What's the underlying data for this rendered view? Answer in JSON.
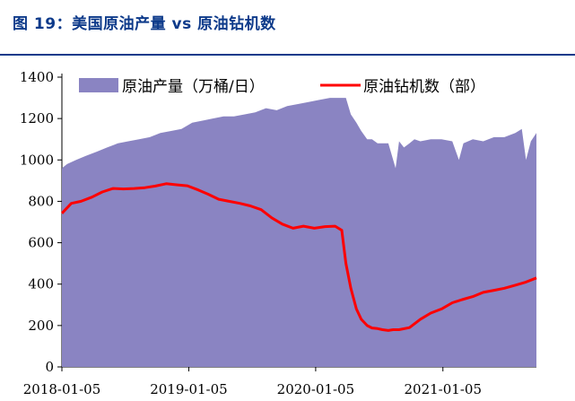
{
  "figure_title": "图 19：美国原油产量 vs 原油钻机数",
  "colors": {
    "title": "#0d3a8a",
    "area": "#8a84c2",
    "line": "#ff0000",
    "axis": "#000000"
  },
  "chart_data": {
    "type": "area",
    "title": "图 19：美国原油产量 vs 原油钻机数",
    "xlabel": "",
    "ylabel": "",
    "ylim": [
      0,
      1400
    ],
    "yticks": [
      0,
      200,
      400,
      600,
      800,
      1000,
      1200,
      1400
    ],
    "xlim": [
      "2018-01-05",
      "2021-10-01"
    ],
    "xticks": [
      "2018-01-05",
      "2019-01-05",
      "2020-01-05",
      "2021-01-05"
    ],
    "grid": false,
    "legend_position": "top",
    "series": [
      {
        "name": "原油产量（万桶/日）",
        "type": "area",
        "x": [
          "2018-01-05",
          "2018-01-20",
          "2018-02-15",
          "2018-03-15",
          "2018-04-15",
          "2018-05-15",
          "2018-06-15",
          "2018-07-15",
          "2018-08-15",
          "2018-09-15",
          "2018-10-15",
          "2018-11-15",
          "2018-12-15",
          "2019-01-15",
          "2019-02-15",
          "2019-03-15",
          "2019-04-15",
          "2019-05-15",
          "2019-06-15",
          "2019-07-15",
          "2019-08-15",
          "2019-09-15",
          "2019-10-15",
          "2019-11-15",
          "2019-12-15",
          "2020-01-15",
          "2020-02-15",
          "2020-03-15",
          "2020-04-01",
          "2020-04-15",
          "2020-05-01",
          "2020-05-15",
          "2020-06-01",
          "2020-06-15",
          "2020-07-01",
          "2020-07-15",
          "2020-08-01",
          "2020-08-22",
          "2020-09-01",
          "2020-09-15",
          "2020-10-01",
          "2020-10-15",
          "2020-11-01",
          "2020-12-01",
          "2021-01-01",
          "2021-02-01",
          "2021-02-20",
          "2021-03-05",
          "2021-04-01",
          "2021-05-01",
          "2021-06-01",
          "2021-07-01",
          "2021-08-01",
          "2021-08-20",
          "2021-09-01",
          "2021-09-15",
          "2021-10-01"
        ],
        "values": [
          960,
          980,
          1000,
          1020,
          1040,
          1060,
          1080,
          1090,
          1100,
          1110,
          1130,
          1140,
          1150,
          1180,
          1190,
          1200,
          1210,
          1210,
          1220,
          1230,
          1250,
          1240,
          1260,
          1270,
          1280,
          1290,
          1300,
          1300,
          1300,
          1220,
          1180,
          1140,
          1100,
          1100,
          1080,
          1080,
          1080,
          960,
          1090,
          1060,
          1080,
          1100,
          1090,
          1100,
          1100,
          1090,
          1000,
          1080,
          1100,
          1090,
          1110,
          1110,
          1130,
          1150,
          1000,
          1090,
          1130
        ]
      },
      {
        "name": "原油钻机数（部）",
        "type": "line",
        "x": [
          "2018-01-05",
          "2018-02-01",
          "2018-03-01",
          "2018-04-01",
          "2018-05-01",
          "2018-06-01",
          "2018-07-01",
          "2018-08-01",
          "2018-09-01",
          "2018-10-01",
          "2018-11-01",
          "2018-12-01",
          "2019-01-01",
          "2019-02-01",
          "2019-03-01",
          "2019-04-01",
          "2019-05-01",
          "2019-06-01",
          "2019-07-01",
          "2019-08-01",
          "2019-09-01",
          "2019-10-01",
          "2019-11-01",
          "2019-12-01",
          "2020-01-01",
          "2020-02-01",
          "2020-03-01",
          "2020-03-20",
          "2020-04-01",
          "2020-04-15",
          "2020-05-01",
          "2020-05-15",
          "2020-06-01",
          "2020-06-15",
          "2020-07-01",
          "2020-07-15",
          "2020-08-01",
          "2020-08-15",
          "2020-09-01",
          "2020-10-01",
          "2020-11-01",
          "2020-12-01",
          "2021-01-01",
          "2021-02-01",
          "2021-03-01",
          "2021-04-01",
          "2021-05-01",
          "2021-06-01",
          "2021-07-01",
          "2021-08-01",
          "2021-09-01",
          "2021-10-01"
        ],
        "values": [
          742,
          790,
          800,
          820,
          845,
          862,
          860,
          862,
          866,
          874,
          885,
          880,
          875,
          855,
          835,
          810,
          800,
          790,
          778,
          760,
          720,
          690,
          670,
          680,
          670,
          678,
          680,
          660,
          500,
          380,
          280,
          230,
          200,
          188,
          185,
          180,
          176,
          180,
          180,
          190,
          230,
          260,
          280,
          310,
          325,
          340,
          360,
          370,
          380,
          395,
          410,
          430
        ]
      }
    ]
  }
}
